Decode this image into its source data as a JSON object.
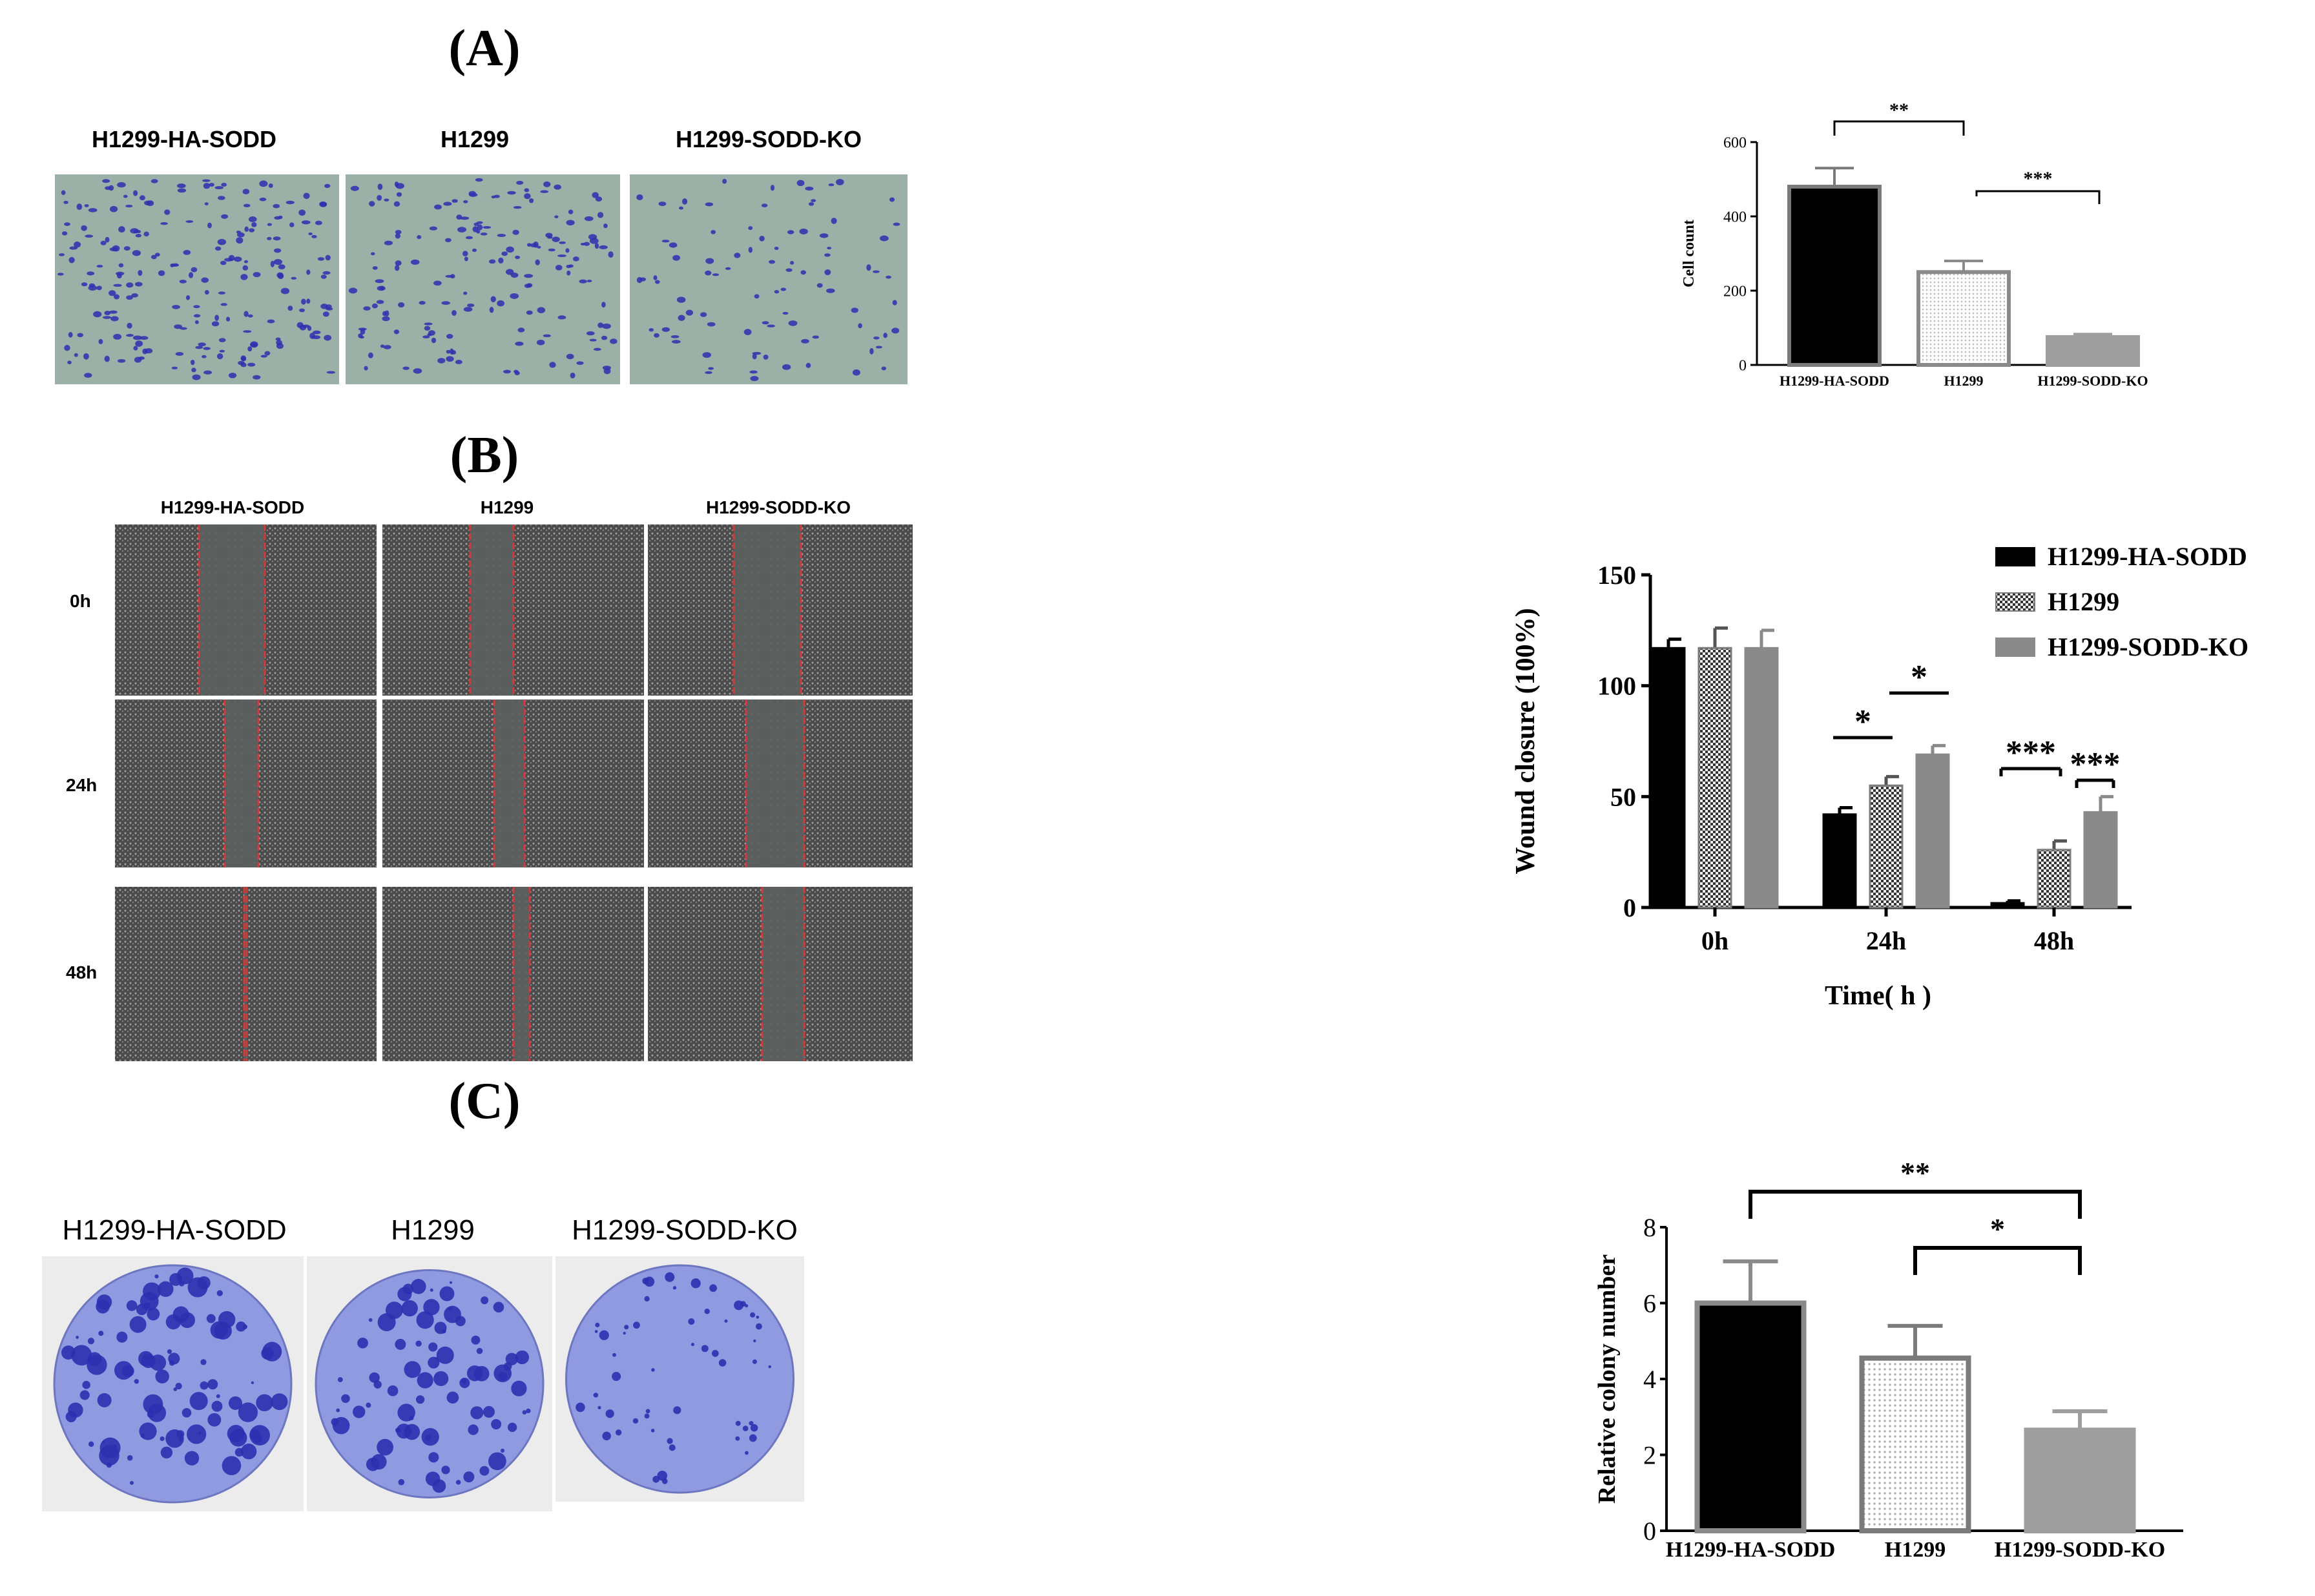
{
  "panels": {
    "A": {
      "letter": "(A)",
      "image_labels": [
        "H1299-HA-SODD",
        "H1299",
        "H1299-SODD-KO"
      ]
    },
    "B": {
      "letter": "(B)",
      "image_labels": [
        "H1299-HA-SODD",
        "H1299",
        "H1299-SODD-KO"
      ],
      "row_labels": [
        "0h",
        "24h",
        "48h"
      ]
    },
    "C": {
      "letter": "(C)",
      "image_labels": [
        "H1299-HA-SODD",
        "H1299",
        "H1299-SODD-KO"
      ]
    }
  },
  "colors": {
    "stain_purple": "#2e2fb0",
    "plate_blue": "#8f9ae0",
    "field_green": "#9bb0a6",
    "scratch_red": "#d23a3a",
    "bar_black": "#000000",
    "bar_gray": "#9e9e9e",
    "bar_light": "#e0e0e0"
  },
  "chart_data": [
    {
      "type": "bar",
      "categories": [
        "H1299-HA-SODD",
        "H1299",
        "H1299-SODD-KO"
      ],
      "values": [
        480,
        250,
        75
      ],
      "errors": [
        50,
        30,
        8
      ],
      "ylabel": "Cell count",
      "xlabel": "",
      "ylim": [
        0,
        600
      ],
      "yticks": [
        0,
        200,
        400,
        600
      ],
      "significance": [
        {
          "from": 0,
          "to": 1,
          "label": "**"
        },
        {
          "from": 1,
          "to": 2,
          "label": "***"
        }
      ]
    },
    {
      "type": "bar",
      "categories": [
        "0h",
        "24h",
        "48h"
      ],
      "series": [
        {
          "name": "H1299-HA-SODD",
          "values": [
            117,
            42,
            2
          ],
          "errors": [
            4,
            3,
            1
          ]
        },
        {
          "name": "H1299",
          "values": [
            117,
            55,
            26
          ],
          "errors": [
            9,
            4,
            4
          ]
        },
        {
          "name": "H1299-SODD-KO",
          "values": [
            117,
            69,
            43
          ],
          "errors": [
            8,
            4,
            7
          ]
        }
      ],
      "xlabel": "Time( h )",
      "ylabel": "Wound closure (100%)",
      "ylim": [
        0,
        150
      ],
      "yticks": [
        0,
        50,
        100,
        150
      ],
      "legend": "top-right",
      "significance": [
        {
          "group": 1,
          "from": 0,
          "to": 1,
          "label": "*"
        },
        {
          "group": 1,
          "from": 1,
          "to": 2,
          "label": "*"
        },
        {
          "group": 2,
          "from": 0,
          "to": 1,
          "label": "***"
        },
        {
          "group": 2,
          "from": 1,
          "to": 2,
          "label": "***"
        }
      ]
    },
    {
      "type": "bar",
      "categories": [
        "H1299-HA-SODD",
        "H1299",
        "H1299-SODD-KO"
      ],
      "values": [
        6.0,
        4.55,
        2.65
      ],
      "errors": [
        1.1,
        0.85,
        0.5
      ],
      "ylabel": "Relative colony number",
      "xlabel": "",
      "ylim": [
        0,
        8
      ],
      "yticks": [
        0,
        2,
        4,
        6,
        8
      ],
      "significance": [
        {
          "from": 0,
          "to": 2,
          "label": "**"
        },
        {
          "from": 1,
          "to": 2,
          "label": "*"
        }
      ]
    }
  ]
}
